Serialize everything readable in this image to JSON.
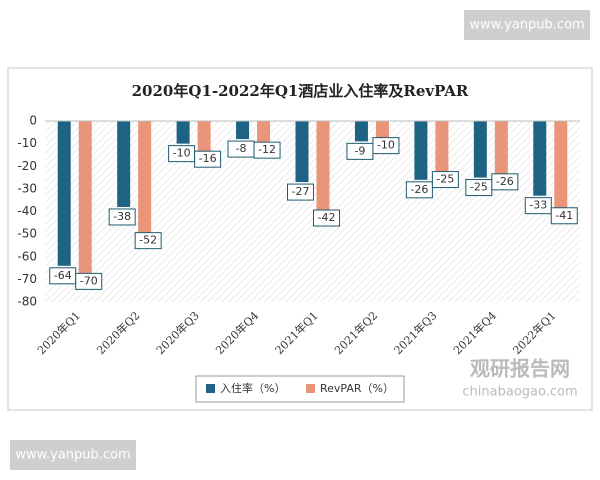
{
  "chart_data": {
    "type": "bar",
    "title": "2020年Q1-2022年Q1酒店业入住率及RevPAR",
    "categories": [
      "2020年Q1",
      "2020年Q2",
      "2020年Q3",
      "2020年Q4",
      "2021年Q1",
      "2021年Q2",
      "2021年Q3",
      "2021年Q4",
      "2022年Q1"
    ],
    "series": [
      {
        "name": "入住率（%）",
        "color": "#1f6384",
        "values": [
          -64,
          -38,
          -10,
          -8,
          -27,
          -9,
          -26,
          -25,
          -33
        ]
      },
      {
        "name": "RevPAR（%）",
        "color": "#e9957a",
        "values": [
          -70,
          -52,
          -16,
          -12,
          -42,
          -10,
          -25,
          -26,
          -41
        ]
      }
    ],
    "ylim": [
      -80,
      0
    ],
    "yticks": [
      0,
      -10,
      -20,
      -30,
      -40,
      -50,
      -60,
      -70,
      -80
    ],
    "grid": false
  },
  "watermarks": {
    "top": "www.yanpub.com",
    "bottom": "www.yanpub.com",
    "brand": "观研报告网",
    "brand_url": "chinabaogao.com"
  }
}
